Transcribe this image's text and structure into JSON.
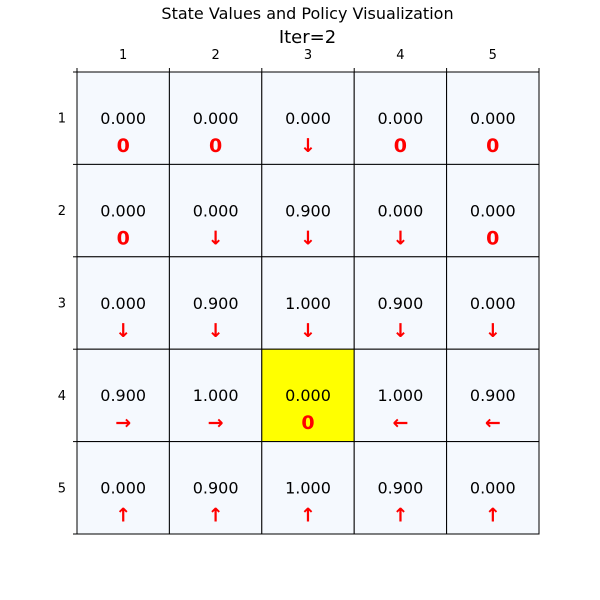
{
  "chart_data": {
    "type": "heatmap",
    "title": "State Values and Policy Visualization",
    "subtitle": "Iter=2",
    "xticks": [
      "1",
      "2",
      "3",
      "4",
      "5"
    ],
    "yticks": [
      "1",
      "2",
      "3",
      "4",
      "5"
    ],
    "values": [
      [
        "0.000",
        "0.000",
        "0.000",
        "0.000",
        "0.000"
      ],
      [
        "0.000",
        "0.000",
        "0.900",
        "0.000",
        "0.000"
      ],
      [
        "0.000",
        "0.900",
        "1.000",
        "0.900",
        "0.000"
      ],
      [
        "0.900",
        "1.000",
        "0.000",
        "1.000",
        "0.900"
      ],
      [
        "0.000",
        "0.900",
        "1.000",
        "0.900",
        "0.000"
      ]
    ],
    "policy": [
      [
        "0",
        "0",
        "↓",
        "0",
        "0"
      ],
      [
        "0",
        "↓",
        "↓",
        "↓",
        "0"
      ],
      [
        "↓",
        "↓",
        "↓",
        "↓",
        "↓"
      ],
      [
        "→",
        "→",
        "0",
        "←",
        "←"
      ],
      [
        "↑",
        "↑",
        "↑",
        "↑",
        "↑"
      ]
    ],
    "highlight_cells": [
      [
        3,
        2
      ]
    ],
    "colors": {
      "cell_fill": "#f5f9fe",
      "highlight_fill": "#ffff00",
      "grid_line": "#000000",
      "policy_text": "#ff0000"
    }
  }
}
